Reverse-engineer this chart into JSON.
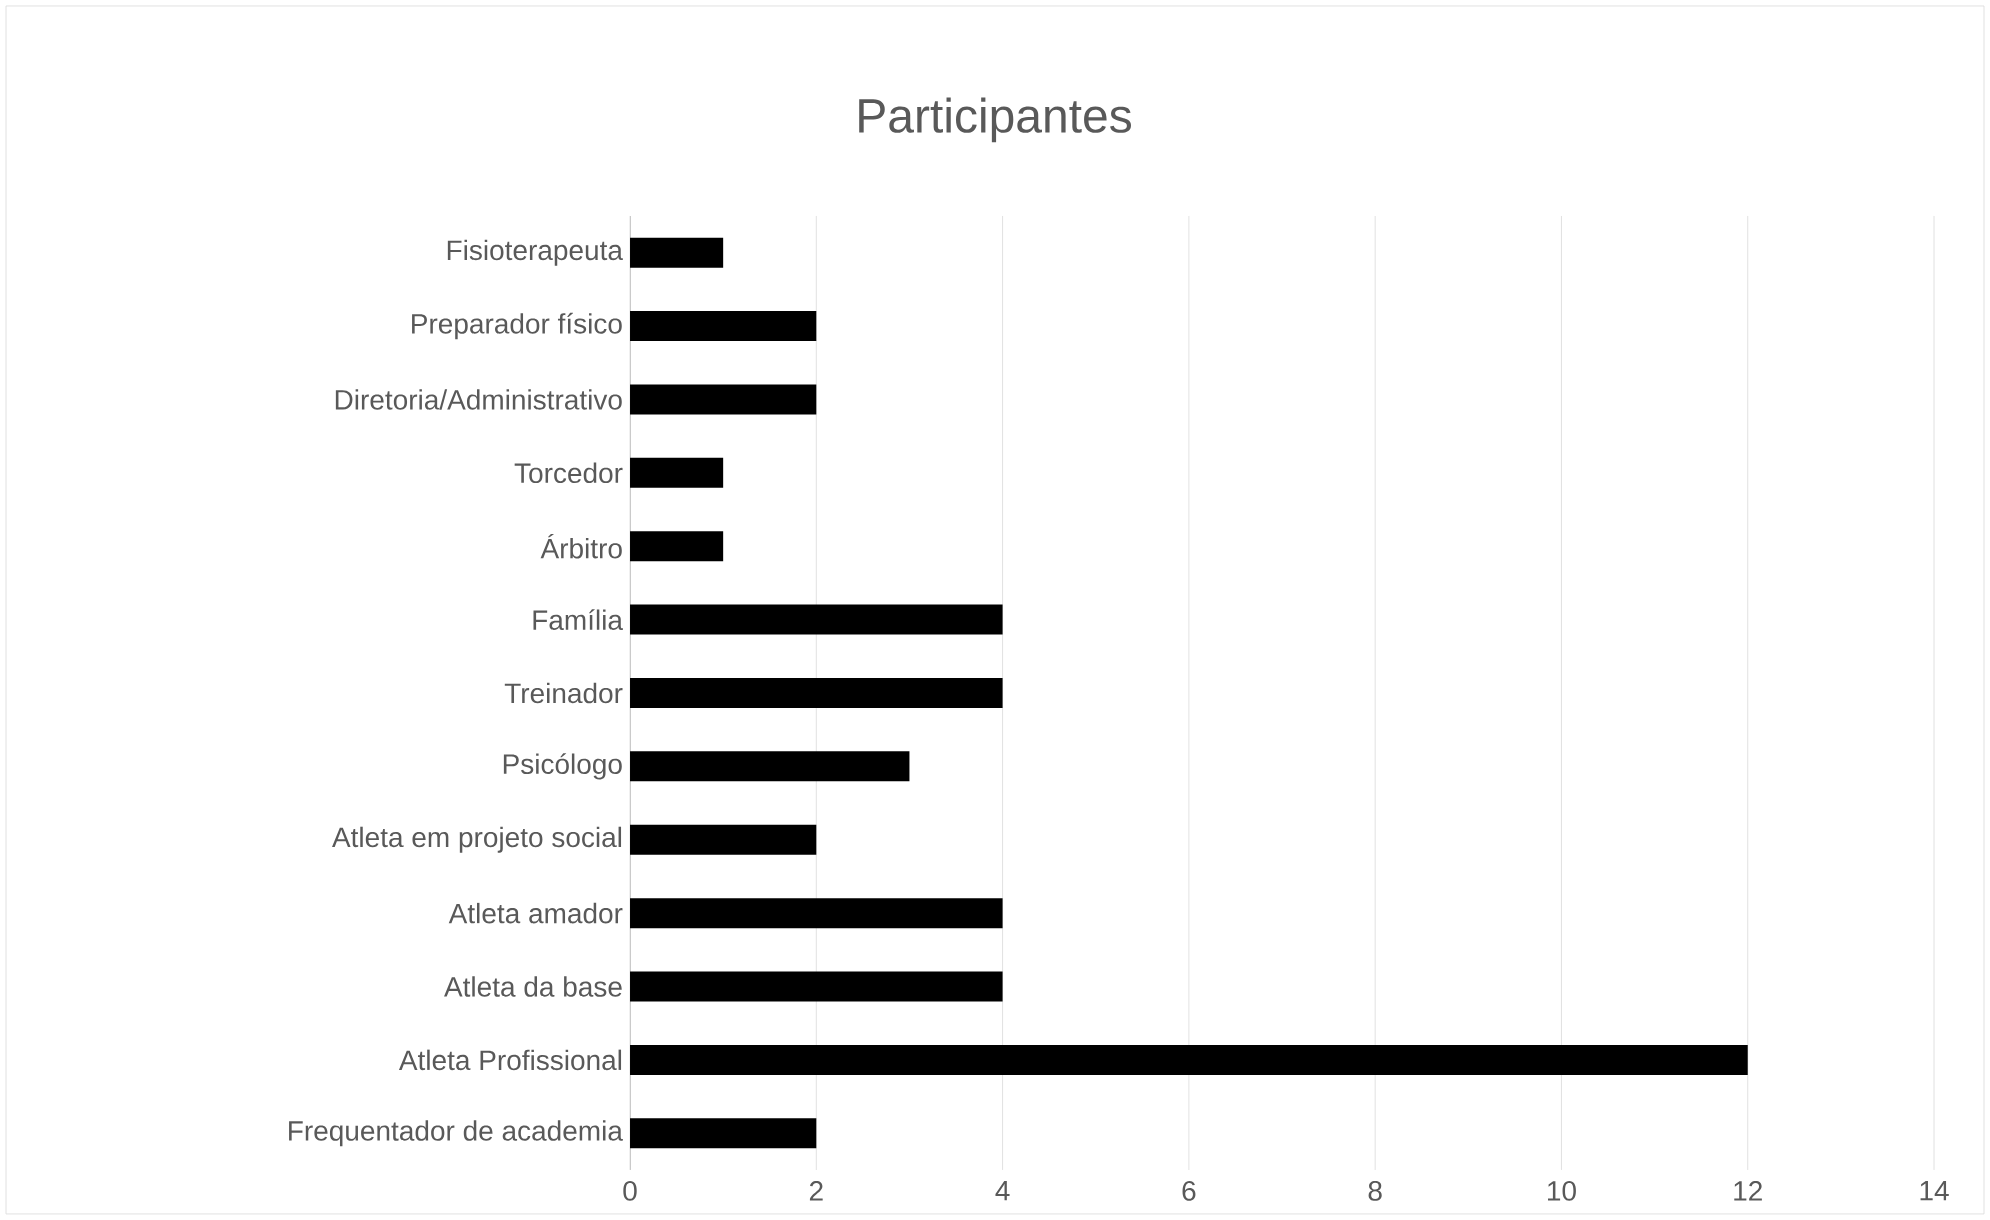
{
  "chart_data": {
    "type": "bar",
    "orientation": "horizontal",
    "title": "Participantes",
    "categories": [
      "Fisioterapeuta",
      "Preparador físico",
      "Diretoria/Administrativo",
      "Torcedor",
      "Árbitro",
      "Família",
      "Treinador",
      "Psicólogo",
      "Atleta em projeto social",
      "Atleta amador",
      "Atleta da base",
      "Atleta Profissional",
      "Frequentador de academia"
    ],
    "values": [
      1,
      2,
      2,
      1,
      1,
      4,
      4,
      3,
      2,
      4,
      4,
      12,
      2
    ],
    "color": "#000000",
    "xlim": [
      0,
      14
    ],
    "xticks": [
      0,
      2,
      4,
      6,
      8,
      10,
      12,
      14
    ],
    "grid": "x"
  }
}
